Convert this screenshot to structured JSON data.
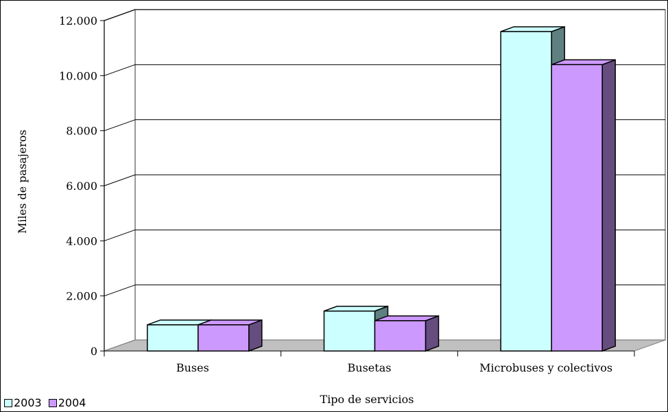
{
  "chart_data": {
    "type": "bar",
    "categories": [
      "Buses",
      "Busetas",
      "Microbuses y colectivos"
    ],
    "series": [
      {
        "name": "2003",
        "values": [
          950,
          1450,
          11600
        ],
        "color": "#ccffff",
        "side_color": "#5f8080"
      },
      {
        "name": "2004",
        "values": [
          950,
          1100,
          10400
        ],
        "color": "#cc99ff",
        "side_color": "#664d80"
      }
    ],
    "xlabel": "Tipo de servicios",
    "ylabel": "Miles de pasajeros",
    "ylim": [
      0,
      12000
    ],
    "yticks": [
      0,
      2000,
      4000,
      6000,
      8000,
      10000,
      12000
    ],
    "ytick_labels": [
      "0",
      "2.000",
      "4.000",
      "6.000",
      "8.000",
      "10.000",
      "12.000"
    ],
    "grid": true,
    "three_d": true,
    "legend_position": "bottom-left"
  }
}
